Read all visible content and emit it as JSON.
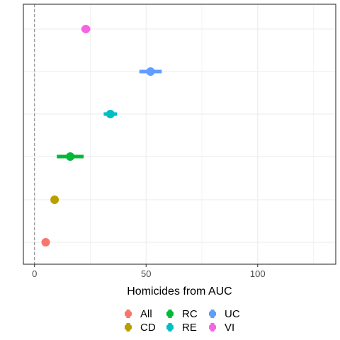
{
  "chart_data": {
    "type": "scatter",
    "xlabel": "Homicides from AUC",
    "ylabel": "",
    "xlim": [
      -5,
      135
    ],
    "x_ticks": [
      0,
      50,
      100
    ],
    "x_ticks_labels": [
      "0",
      "50",
      "100"
    ],
    "grid": true,
    "reference_line_x": 0,
    "legend_position": "bottom",
    "series": [
      {
        "name": "All",
        "color": "#F8766D",
        "value": 5,
        "ci": [
          4,
          6
        ]
      },
      {
        "name": "CD",
        "color": "#B79F00",
        "value": 9,
        "ci": [
          8,
          10
        ]
      },
      {
        "name": "RC",
        "color": "#00BA38",
        "value": 16,
        "ci": [
          10,
          22
        ]
      },
      {
        "name": "RE",
        "color": "#00BFC4",
        "value": 34,
        "ci": [
          31,
          37
        ]
      },
      {
        "name": "UC",
        "color": "#619CFF",
        "value": 52,
        "ci": [
          47,
          57
        ]
      },
      {
        "name": "VI",
        "color": "#F564E3",
        "value": 23,
        "ci": [
          21,
          25
        ]
      }
    ],
    "legend_order": [
      "All",
      "CD",
      "RC",
      "RE",
      "UC",
      "VI"
    ]
  }
}
